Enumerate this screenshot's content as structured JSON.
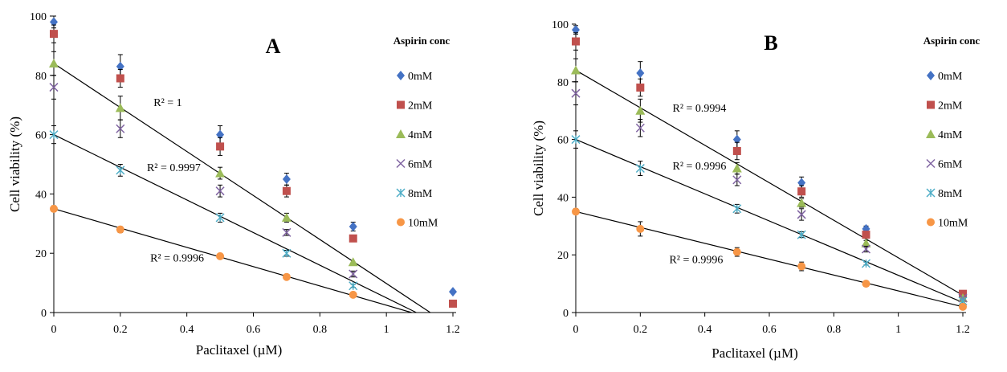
{
  "chart_data": [
    {
      "type": "scatter",
      "panel_label": "A",
      "xlabel": "Paclitaxel (µM)",
      "ylabel": "Cell viability (%)",
      "xlim": [
        0,
        1.2
      ],
      "ylim": [
        0,
        100
      ],
      "x_ticks": [
        "0",
        "0.2",
        "0.4",
        "0.6",
        "0.8",
        "1",
        "1.2"
      ],
      "y_ticks": [
        "0",
        "20",
        "40",
        "60",
        "80",
        "100"
      ],
      "legend_title": "Aspirin conc",
      "legend_position": "right",
      "grid": false,
      "x": [
        0,
        0.2,
        0.5,
        0.7,
        0.9,
        1.2
      ],
      "series": [
        {
          "name": "0mM",
          "color": "#4472C4",
          "marker": "diamond",
          "values": [
            98,
            83,
            60,
            45,
            29,
            7
          ],
          "errors": [
            2,
            4,
            3,
            2,
            1.5,
            0
          ]
        },
        {
          "name": "2mM",
          "color": "#C0504D",
          "marker": "square",
          "values": [
            94,
            79,
            56,
            41,
            25,
            3
          ],
          "errors": [
            3,
            3,
            3,
            2,
            0,
            0
          ]
        },
        {
          "name": "4mM",
          "color": "#9BBB59",
          "marker": "triangle",
          "values": [
            84,
            69,
            47,
            32,
            17,
            null
          ],
          "errors": [
            4,
            4,
            2,
            1.5,
            0,
            0
          ]
        },
        {
          "name": "6mM",
          "color": "#8064A2",
          "marker": "x",
          "values": [
            76,
            62,
            41,
            27,
            13,
            null
          ],
          "errors": [
            4,
            3,
            2,
            1,
            1,
            0
          ]
        },
        {
          "name": "8mM",
          "color": "#4BACC6",
          "marker": "asterisk",
          "values": [
            60,
            48,
            32,
            20,
            9,
            null
          ],
          "errors": [
            3,
            2,
            1.5,
            1,
            0.5,
            0
          ]
        },
        {
          "name": "10mM",
          "color": "#F79646",
          "marker": "circle",
          "values": [
            35,
            28,
            19,
            12,
            6,
            null
          ],
          "errors": [
            1,
            1,
            0.5,
            0.5,
            0.5,
            0
          ]
        }
      ],
      "trendlines": [
        {
          "series": "4mM",
          "x_start": 0,
          "y_start": 84,
          "x_end": 1.132,
          "y_end": 0
        },
        {
          "series": "8mM",
          "x_start": 0,
          "y_start": 60,
          "x_end": 1.09,
          "y_end": 0
        },
        {
          "series": "10mM",
          "x_start": 0,
          "y_start": 35,
          "x_end": 1.076,
          "y_end": 0
        }
      ],
      "annotations": [
        {
          "text": "R² = 1",
          "x": 0.3,
          "y": 71
        },
        {
          "text": "R² = 0.9997",
          "x": 0.28,
          "y": 49
        },
        {
          "text": "R² = 0.9996",
          "x": 0.29,
          "y": 18.5
        }
      ]
    },
    {
      "type": "scatter",
      "panel_label": "B",
      "xlabel": "Paclitaxel (µM)",
      "ylabel": "Cell viability (%)",
      "xlim": [
        0,
        1.2
      ],
      "ylim": [
        0,
        100
      ],
      "x_ticks": [
        "0",
        "0.2",
        "0.4",
        "0.6",
        "0.8",
        "1",
        "1.2"
      ],
      "y_ticks": [
        "0",
        "20",
        "40",
        "60",
        "80",
        "100"
      ],
      "legend_title": "Aspirin conc",
      "legend_position": "right",
      "grid": false,
      "x": [
        0,
        0.2,
        0.5,
        0.7,
        0.9,
        1.2
      ],
      "series": [
        {
          "name": "0mM",
          "color": "#4472C4",
          "marker": "diamond",
          "values": [
            98,
            83,
            60,
            45,
            29,
            6
          ],
          "errors": [
            1.5,
            4,
            3,
            2,
            1,
            0
          ]
        },
        {
          "name": "2mM",
          "color": "#C0504D",
          "marker": "square",
          "values": [
            94,
            78,
            56,
            42,
            27,
            6.5
          ],
          "errors": [
            3,
            3,
            3,
            2,
            1,
            0
          ]
        },
        {
          "name": "4mM",
          "color": "#9BBB59",
          "marker": "triangle",
          "values": [
            84,
            70,
            50,
            38,
            24,
            5
          ],
          "errors": [
            4,
            4,
            2,
            1.5,
            1,
            0
          ]
        },
        {
          "name": "6mM",
          "color": "#8064A2",
          "marker": "x",
          "values": [
            76,
            64,
            46,
            34,
            22,
            5
          ],
          "errors": [
            4,
            3,
            2,
            2,
            1,
            0
          ]
        },
        {
          "name": "8mM",
          "color": "#4BACC6",
          "marker": "asterisk",
          "values": [
            60,
            50,
            36,
            27,
            17,
            4
          ],
          "errors": [
            3,
            2.5,
            1.5,
            1,
            0.5,
            0
          ]
        },
        {
          "name": "10mM",
          "color": "#F79646",
          "marker": "circle",
          "values": [
            35,
            29,
            21,
            16,
            10,
            2
          ],
          "errors": [
            1,
            2.5,
            1.5,
            1.5,
            0.5,
            0.5
          ]
        }
      ],
      "trendlines": [
        {
          "series": "4mM",
          "x_start": 0,
          "y_start": 84,
          "x_end": 1.2,
          "y_end": 6
        },
        {
          "series": "8mM",
          "x_start": 0,
          "y_start": 60,
          "x_end": 1.2,
          "y_end": 3.5
        },
        {
          "series": "10mM",
          "x_start": 0,
          "y_start": 35,
          "x_end": 1.2,
          "y_end": 2
        }
      ],
      "annotations": [
        {
          "text": "R² = 0.9994",
          "x": 0.3,
          "y": 71
        },
        {
          "text": "R² = 0.9996",
          "x": 0.3,
          "y": 51
        },
        {
          "text": "R² = 0.9996",
          "x": 0.29,
          "y": 18.5
        }
      ]
    }
  ]
}
